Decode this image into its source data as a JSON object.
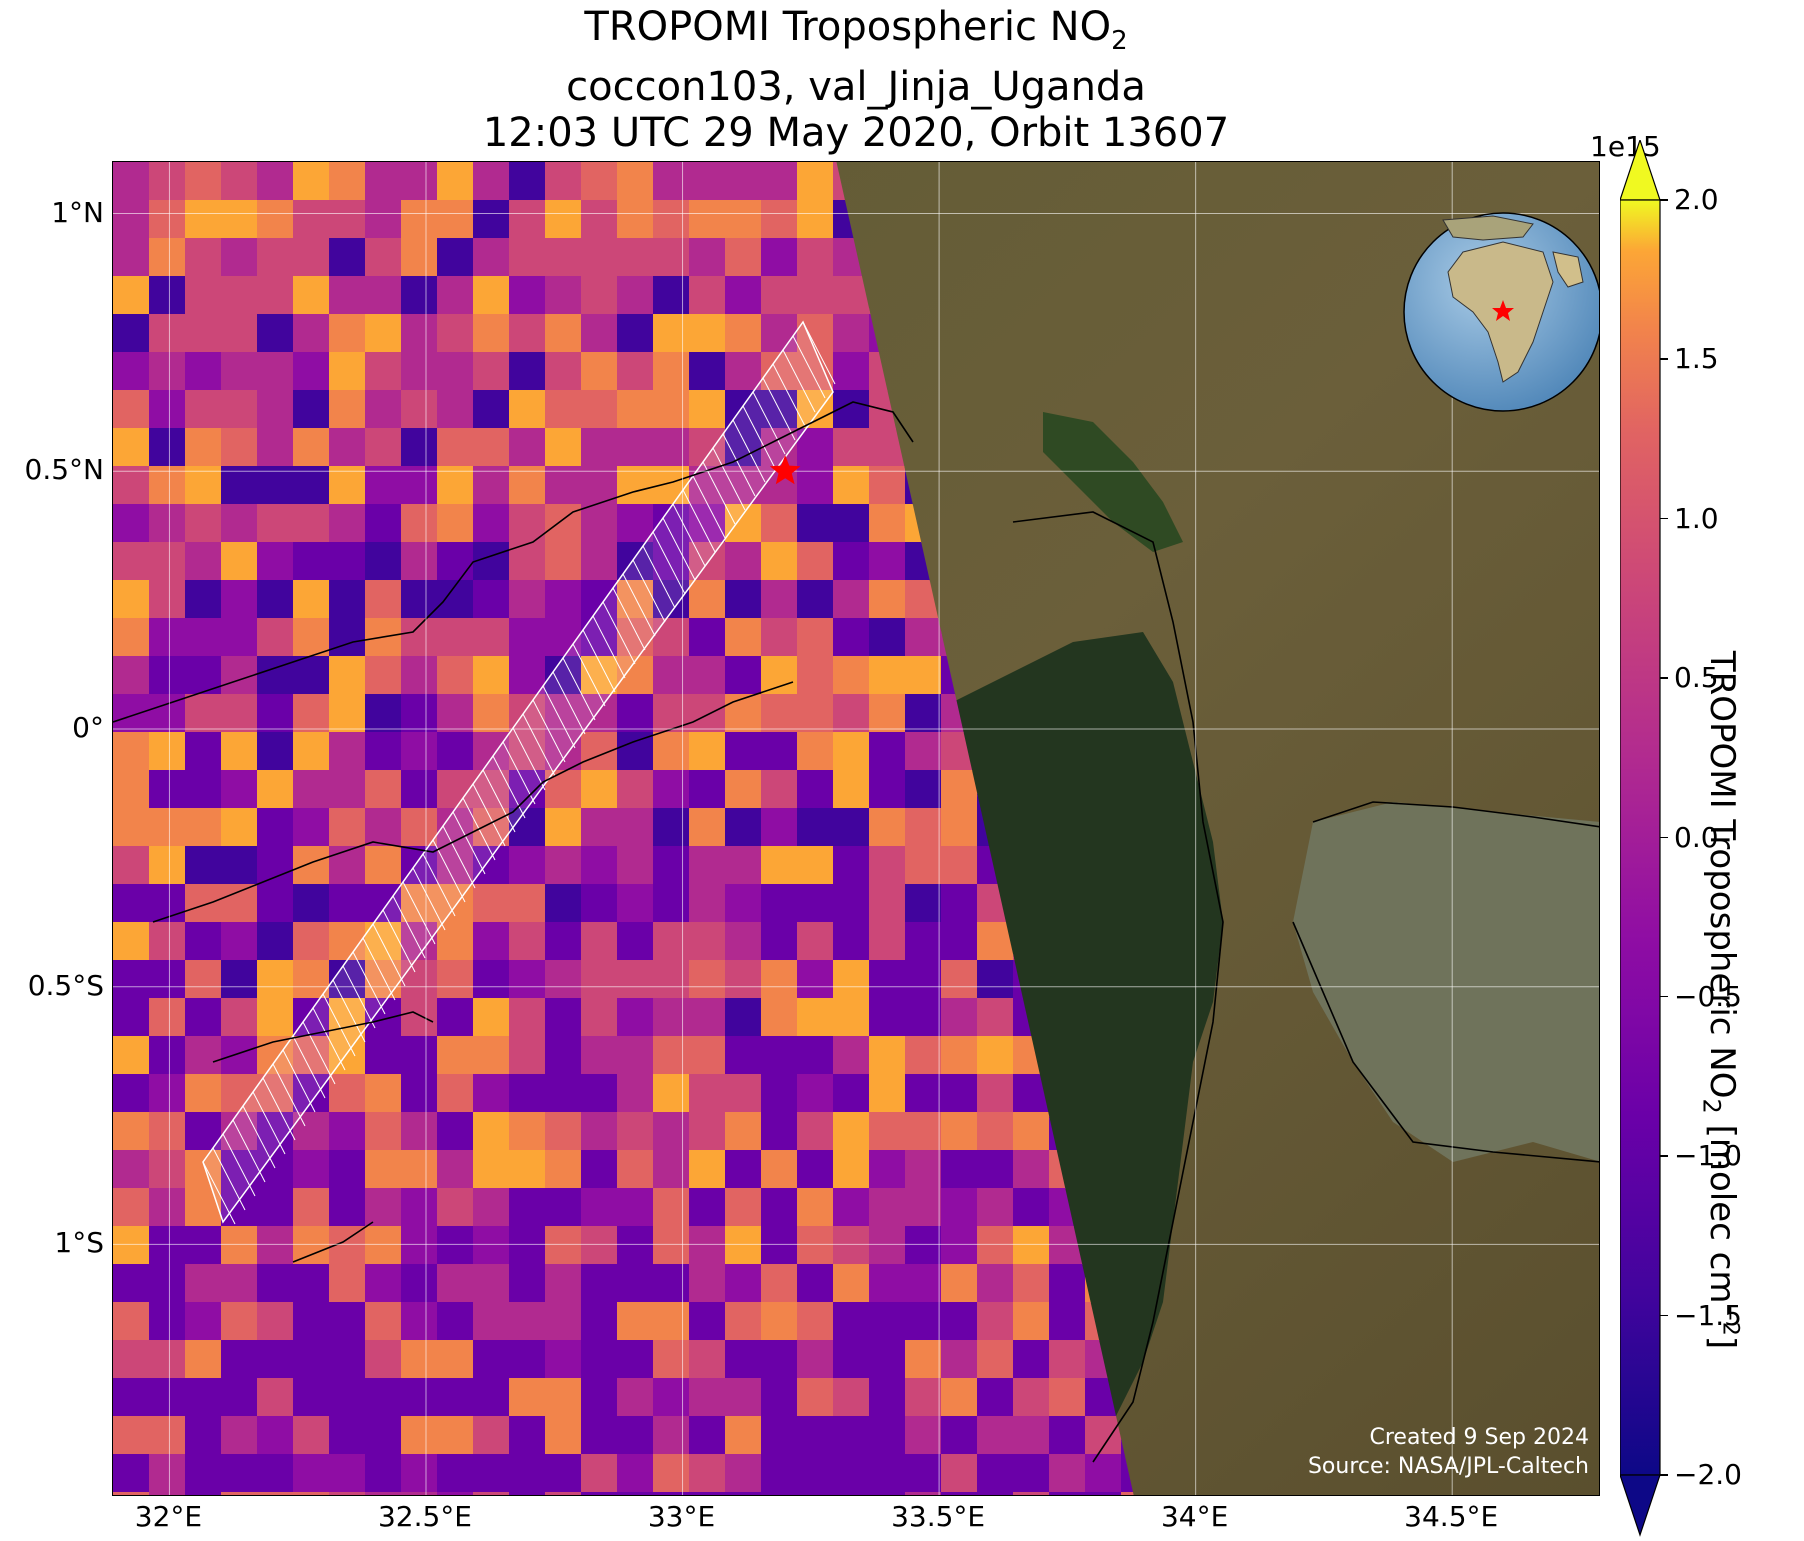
{
  "title": {
    "line1_prefix": "TROPOMI Tropospheric NO",
    "line1_sub": "2",
    "line2": "coccon103, val_Jinja_Uganda",
    "line3": "12:03 UTC 29 May 2020, Orbit 13607"
  },
  "map": {
    "lon_range": [
      31.89,
      34.79
    ],
    "lat_range": [
      -1.49,
      1.1
    ],
    "lon_ticks": [
      {
        "value": 32.0,
        "label": "32°E"
      },
      {
        "value": 32.5,
        "label": "32.5°E"
      },
      {
        "value": 33.0,
        "label": "33°E"
      },
      {
        "value": 33.5,
        "label": "33.5°E"
      },
      {
        "value": 34.0,
        "label": "34°E"
      },
      {
        "value": 34.5,
        "label": "34.5°E"
      }
    ],
    "lat_ticks": [
      {
        "value": 1.0,
        "label": "1°N"
      },
      {
        "value": 0.5,
        "label": "0.5°N"
      },
      {
        "value": 0.0,
        "label": "0°"
      },
      {
        "value": -0.5,
        "label": "0.5°S"
      },
      {
        "value": -1.0,
        "label": "1°S"
      }
    ],
    "station": {
      "lon": 33.2,
      "lat": 0.5,
      "marker": "red-star"
    },
    "swath_edge": [
      [
        33.3,
        1.1
      ],
      [
        33.88,
        -1.49
      ]
    ],
    "gridlines": true,
    "background": "satellite-imagery",
    "inset_globe": {
      "position": "top-right",
      "marker": "red-star"
    }
  },
  "colorbar": {
    "label_prefix": "TROPOMI Tropospheric NO",
    "label_sub": "2",
    "label_mid": " [molec cm",
    "label_sup": "−2",
    "label_end": "]",
    "exponent": "1e15",
    "range": [
      -2.0,
      2.0
    ],
    "extend": "both",
    "colormap": "plasma",
    "ticks": [
      "−2.0",
      "−1.5",
      "−1.0",
      "−0.5",
      "0.0",
      "0.5",
      "1.0",
      "1.5",
      "2.0"
    ]
  },
  "credit": {
    "created": "Created 9 Sep 2024",
    "source": "Source: NASA/JPL-Caltech"
  },
  "colors": {
    "station_marker": "#ff0000",
    "gridline": "#ffffff",
    "coastline": "#000000",
    "footprint_outline": "#ffffff"
  }
}
